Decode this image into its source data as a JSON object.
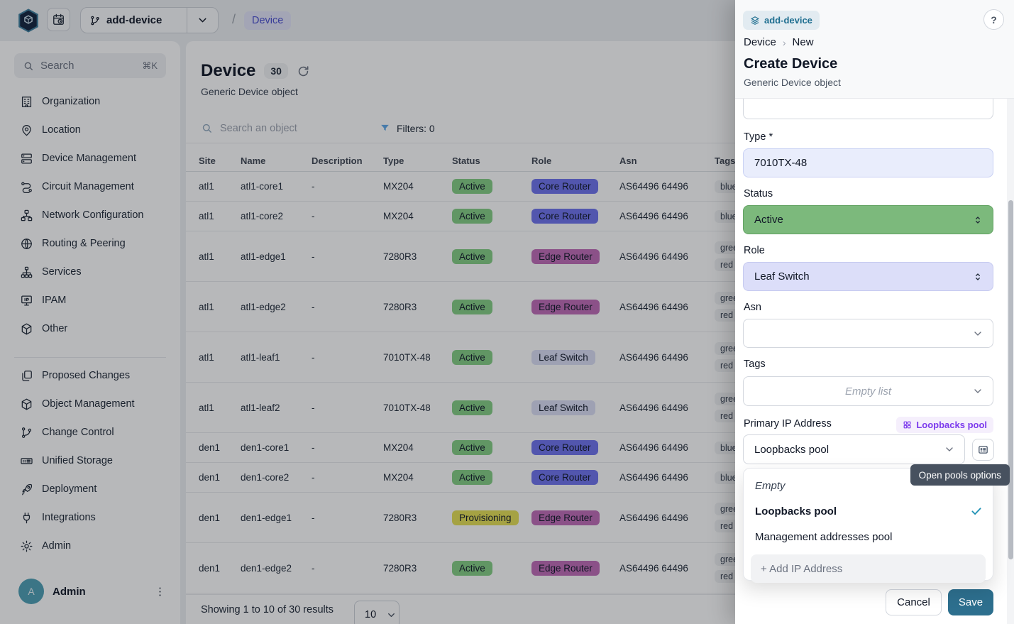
{
  "topbar": {
    "branch_label": "add-device",
    "breadcrumb_slash": "/",
    "breadcrumb_page": "Device"
  },
  "sidebar": {
    "search": {
      "label": "Search",
      "shortcut": "⌘K"
    },
    "groups": [
      [
        {
          "label": "Organization",
          "icon": "building"
        },
        {
          "label": "Location",
          "icon": "map-pin"
        },
        {
          "label": "Device Management",
          "icon": "server"
        },
        {
          "label": "Circuit Management",
          "icon": "route"
        },
        {
          "label": "Network Configuration",
          "icon": "hierarchy"
        },
        {
          "label": "Routing & Peering",
          "icon": "globe"
        },
        {
          "label": "Services",
          "icon": "tree"
        },
        {
          "label": "IPAM",
          "icon": "ip-monitor"
        },
        {
          "label": "Other",
          "icon": "cube"
        }
      ],
      [
        {
          "label": "Proposed Changes",
          "icon": "copy"
        },
        {
          "label": "Object Management",
          "icon": "cube"
        },
        {
          "label": "Change Control",
          "icon": "git-branch"
        },
        {
          "label": "Unified Storage",
          "icon": "storage"
        },
        {
          "label": "Deployment",
          "icon": "rocket"
        },
        {
          "label": "Integrations",
          "icon": "plug"
        },
        {
          "label": "Admin",
          "icon": "gear"
        }
      ]
    ],
    "user": {
      "name": "Admin",
      "initial": "A"
    }
  },
  "main": {
    "title": "Device",
    "count": "30",
    "subtitle": "Generic Device object",
    "search_placeholder": "Search an object",
    "filters_label": "Filters: 0",
    "table": {
      "columns": [
        "Site",
        "Name",
        "Description",
        "Type",
        "Status",
        "Role",
        "Asn",
        "Tags"
      ],
      "rows": [
        {
          "site": "atl1",
          "name": "atl1-core1",
          "description": "-",
          "type": "MX204",
          "status": "Active",
          "role": "Core Router",
          "asn": "AS64496 64496",
          "tags": [
            "blue"
          ]
        },
        {
          "site": "atl1",
          "name": "atl1-core2",
          "description": "-",
          "type": "MX204",
          "status": "Active",
          "role": "Core Router",
          "asn": "AS64496 64496",
          "tags": [
            "blue"
          ]
        },
        {
          "site": "atl1",
          "name": "atl1-edge1",
          "description": "-",
          "type": "7280R3",
          "status": "Active",
          "role": "Edge Router",
          "asn": "AS64496 64496",
          "tags": [
            "green",
            "red"
          ]
        },
        {
          "site": "atl1",
          "name": "atl1-edge2",
          "description": "-",
          "type": "7280R3",
          "status": "Active",
          "role": "Edge Router",
          "asn": "AS64496 64496",
          "tags": [
            "green",
            "red"
          ]
        },
        {
          "site": "atl1",
          "name": "atl1-leaf1",
          "description": "-",
          "type": "7010TX-48",
          "status": "Active",
          "role": "Leaf Switch",
          "asn": "AS64496 64496",
          "tags": [
            "green",
            "red"
          ]
        },
        {
          "site": "atl1",
          "name": "atl1-leaf2",
          "description": "-",
          "type": "7010TX-48",
          "status": "Active",
          "role": "Leaf Switch",
          "asn": "AS64496 64496",
          "tags": [
            "green",
            "red"
          ]
        },
        {
          "site": "den1",
          "name": "den1-core1",
          "description": "-",
          "type": "MX204",
          "status": "Active",
          "role": "Core Router",
          "asn": "AS64496 64496",
          "tags": [
            "blue"
          ]
        },
        {
          "site": "den1",
          "name": "den1-core2",
          "description": "-",
          "type": "MX204",
          "status": "Active",
          "role": "Core Router",
          "asn": "AS64496 64496",
          "tags": [
            "blue"
          ]
        },
        {
          "site": "den1",
          "name": "den1-edge1",
          "description": "-",
          "type": "7280R3",
          "status": "Provisioning",
          "role": "Edge Router",
          "asn": "AS64496 64496",
          "tags": [
            "green",
            "red"
          ]
        },
        {
          "site": "den1",
          "name": "den1-edge2",
          "description": "-",
          "type": "7280R3",
          "status": "Active",
          "role": "Edge Router",
          "asn": "AS64496 64496",
          "tags": [
            "green",
            "red"
          ]
        }
      ]
    },
    "pagination": {
      "summary": "Showing 1 to 10 of 30 results",
      "page_size": "10"
    }
  },
  "drawer": {
    "branch_badge": "add-device",
    "help_label": "?",
    "breadcrumb": {
      "parent": "Device",
      "sep": "›",
      "current": "New"
    },
    "title": "Create Device",
    "subtitle": "Generic Device object",
    "fields": {
      "type": {
        "label": "Type *",
        "value": "7010TX-48"
      },
      "status": {
        "label": "Status",
        "value": "Active"
      },
      "role": {
        "label": "Role",
        "value": "Leaf Switch"
      },
      "asn": {
        "label": "Asn",
        "value": ""
      },
      "tags": {
        "label": "Tags",
        "placeholder": "Empty list"
      }
    },
    "primary_ip": {
      "label": "Primary IP Address",
      "pool_chip": "Loopbacks pool",
      "selected_value": "Loopbacks pool",
      "tooltip": "Open pools options"
    },
    "dropdown": {
      "items": [
        {
          "label": "Empty",
          "empty": true,
          "selected": false
        },
        {
          "label": "Loopbacks pool",
          "empty": false,
          "selected": true
        },
        {
          "label": "Management addresses pool",
          "empty": false,
          "selected": false
        }
      ],
      "action_label": "+ Add IP Address"
    },
    "cancel_label": "Cancel",
    "save_label": "Save"
  },
  "colors": {
    "primary": "#2D6F8E",
    "status": {
      "Active": "#84CE84",
      "Provisioning": "#E6E055"
    },
    "role": {
      "Core Router": "#6F73EE",
      "Edge Router": "#C06CB8",
      "Leaf Switch": "#DCDFF5"
    },
    "status_field_bg": "#7CB97C",
    "role_field_bg": "#DCDEF9",
    "type_field_bg": "#E9EDFC",
    "pool_chip_text": "#7C3AED",
    "check": "#1C90B4",
    "tooltip_bg": "#47515F"
  }
}
